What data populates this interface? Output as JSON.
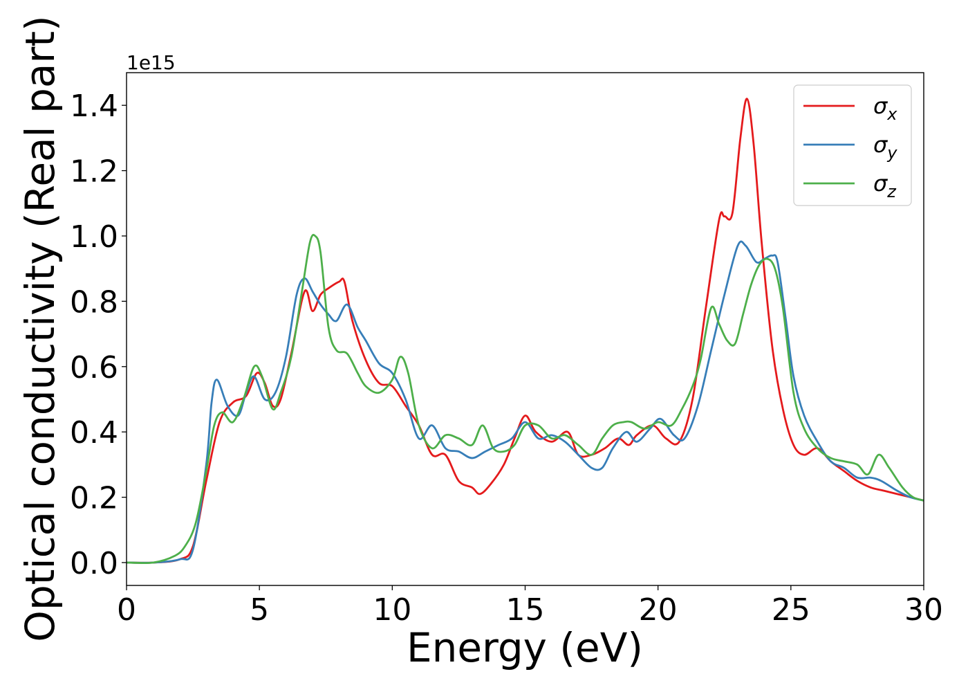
{
  "chart_data": {
    "type": "line",
    "xlabel": "Energy (eV)",
    "ylabel": "Optical conductivity (Real part)",
    "y_offset_text": "1e15",
    "y_scale": 1000000000000000.0,
    "xlim": [
      0,
      30
    ],
    "ylim": [
      -0.07,
      1.5
    ],
    "x_ticks": [
      0,
      5,
      10,
      15,
      20,
      25,
      30
    ],
    "x_tick_labels": [
      "0",
      "5",
      "10",
      "15",
      "20",
      "25",
      "30"
    ],
    "y_ticks": [
      0.0,
      0.2,
      0.4,
      0.6,
      0.8,
      1.0,
      1.2,
      1.4
    ],
    "y_tick_labels": [
      "0.0",
      "0.2",
      "0.4",
      "0.6",
      "0.8",
      "1.0",
      "1.2",
      "1.4"
    ],
    "grid": false,
    "legend_position": "top-right",
    "series": [
      {
        "name": "σx",
        "symbol": "σ",
        "subscript": "x",
        "color": "#e41a1c",
        "x": [
          0,
          1,
          2,
          2.5,
          3,
          3.5,
          4,
          4.5,
          4.9,
          5.2,
          5.5,
          5.8,
          6.2,
          6.7,
          7.0,
          7.3,
          7.6,
          8.0,
          8.2,
          8.5,
          9.0,
          9.5,
          10.0,
          10.5,
          11.0,
          11.5,
          12.0,
          12.5,
          13.0,
          13.3,
          13.7,
          14.2,
          14.6,
          15.0,
          15.4,
          16.0,
          16.6,
          17.0,
          17.5,
          18.0,
          18.5,
          18.9,
          19.2,
          19.8,
          20.3,
          20.8,
          21.3,
          21.8,
          22.3,
          22.5,
          22.8,
          23.1,
          23.35,
          23.6,
          23.9,
          24.3,
          24.7,
          25.1,
          25.5,
          26.0,
          26.5,
          27.0,
          27.5,
          28.0,
          28.5,
          29.0,
          29.5,
          30.0
        ],
        "values": [
          0.0,
          0.0,
          0.01,
          0.05,
          0.25,
          0.43,
          0.49,
          0.51,
          0.58,
          0.55,
          0.48,
          0.5,
          0.64,
          0.83,
          0.77,
          0.82,
          0.84,
          0.86,
          0.86,
          0.74,
          0.62,
          0.55,
          0.54,
          0.48,
          0.42,
          0.33,
          0.33,
          0.25,
          0.23,
          0.21,
          0.24,
          0.3,
          0.38,
          0.45,
          0.4,
          0.37,
          0.4,
          0.33,
          0.33,
          0.35,
          0.38,
          0.36,
          0.39,
          0.42,
          0.38,
          0.37,
          0.5,
          0.78,
          1.05,
          1.06,
          1.07,
          1.3,
          1.42,
          1.28,
          0.98,
          0.66,
          0.47,
          0.36,
          0.33,
          0.35,
          0.31,
          0.28,
          0.25,
          0.23,
          0.22,
          0.21,
          0.2,
          0.19
        ]
      },
      {
        "name": "σy",
        "symbol": "σ",
        "subscript": "y",
        "color": "#377eb8",
        "x": [
          0,
          1,
          2,
          2.5,
          3,
          3.2,
          3.4,
          3.8,
          4.2,
          4.5,
          4.8,
          5.2,
          5.6,
          6.0,
          6.4,
          6.7,
          7.0,
          7.3,
          7.6,
          7.9,
          8.3,
          8.7,
          9.0,
          9.5,
          10.0,
          10.5,
          11.0,
          11.5,
          12.0,
          12.5,
          13.0,
          13.5,
          14.0,
          14.5,
          15.0,
          15.5,
          16.0,
          16.5,
          17.0,
          17.5,
          17.9,
          18.3,
          18.8,
          19.2,
          19.7,
          20.1,
          20.6,
          21.0,
          21.5,
          22.0,
          22.5,
          23.0,
          23.3,
          23.7,
          24.0,
          24.3,
          24.5,
          24.8,
          25.1,
          25.5,
          26.0,
          26.5,
          27.0,
          27.5,
          28.0,
          28.4,
          29.0,
          29.5,
          30.0
        ],
        "values": [
          0.0,
          0.0,
          0.01,
          0.04,
          0.3,
          0.49,
          0.56,
          0.48,
          0.45,
          0.52,
          0.57,
          0.5,
          0.52,
          0.63,
          0.82,
          0.87,
          0.83,
          0.79,
          0.76,
          0.74,
          0.79,
          0.72,
          0.68,
          0.61,
          0.58,
          0.5,
          0.38,
          0.42,
          0.35,
          0.34,
          0.32,
          0.34,
          0.36,
          0.38,
          0.43,
          0.38,
          0.39,
          0.37,
          0.33,
          0.29,
          0.29,
          0.35,
          0.4,
          0.37,
          0.41,
          0.44,
          0.39,
          0.38,
          0.48,
          0.65,
          0.82,
          0.97,
          0.97,
          0.92,
          0.93,
          0.94,
          0.92,
          0.75,
          0.57,
          0.45,
          0.37,
          0.31,
          0.29,
          0.26,
          0.26,
          0.25,
          0.22,
          0.2,
          0.19
        ]
      },
      {
        "name": "σz",
        "symbol": "σ",
        "subscript": "z",
        "color": "#4daf4a",
        "x": [
          0,
          1,
          1.8,
          2.2,
          2.6,
          3.0,
          3.3,
          3.6,
          4.0,
          4.4,
          4.8,
          5.1,
          5.5,
          5.8,
          6.2,
          6.6,
          6.9,
          7.1,
          7.3,
          7.6,
          7.9,
          8.3,
          8.7,
          9.0,
          9.5,
          10.0,
          10.3,
          10.6,
          11.0,
          11.5,
          12.0,
          12.5,
          13.0,
          13.4,
          13.8,
          14.2,
          14.6,
          15.0,
          15.5,
          16.0,
          16.5,
          17.0,
          17.5,
          17.9,
          18.3,
          18.7,
          19.0,
          19.5,
          20.0,
          20.5,
          20.9,
          21.3,
          21.6,
          22.0,
          22.3,
          22.6,
          22.9,
          23.2,
          23.5,
          23.8,
          24.1,
          24.4,
          24.7,
          25.1,
          25.5,
          26.0,
          26.5,
          27.0,
          27.5,
          27.9,
          28.3,
          28.7,
          29.2,
          29.6,
          30.0
        ],
        "values": [
          0.0,
          0.0,
          0.02,
          0.05,
          0.12,
          0.28,
          0.42,
          0.46,
          0.43,
          0.5,
          0.6,
          0.57,
          0.47,
          0.52,
          0.63,
          0.83,
          0.98,
          1.0,
          0.95,
          0.72,
          0.65,
          0.64,
          0.58,
          0.54,
          0.52,
          0.56,
          0.63,
          0.58,
          0.42,
          0.35,
          0.39,
          0.38,
          0.36,
          0.42,
          0.35,
          0.34,
          0.36,
          0.42,
          0.42,
          0.38,
          0.39,
          0.36,
          0.33,
          0.38,
          0.42,
          0.43,
          0.43,
          0.41,
          0.43,
          0.42,
          0.47,
          0.54,
          0.62,
          0.78,
          0.73,
          0.68,
          0.67,
          0.76,
          0.85,
          0.91,
          0.93,
          0.9,
          0.78,
          0.52,
          0.41,
          0.35,
          0.32,
          0.31,
          0.3,
          0.27,
          0.33,
          0.29,
          0.23,
          0.2,
          0.19
        ]
      }
    ]
  }
}
